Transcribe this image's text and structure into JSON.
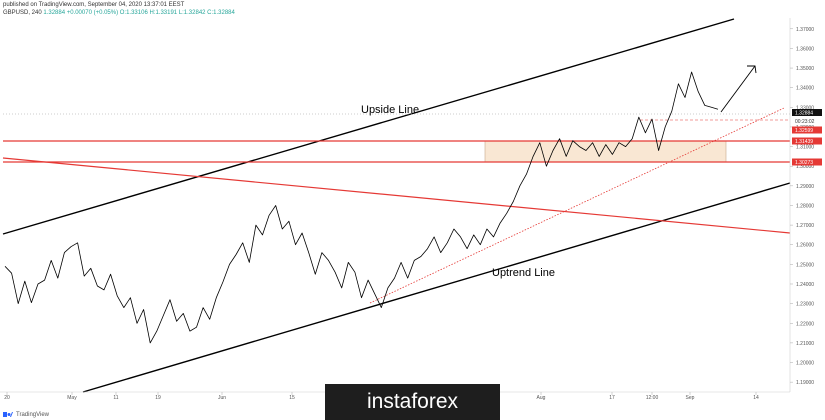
{
  "header": {
    "published_line": "published on TradingView.com, September 04, 2020 13:37:01 EEST",
    "symbol_line": "GBPUSD, 240",
    "ohlc": "1.32884 +0.00070 (+0.05%) O:1.33106 H:1.33191 L:1.32842 C:1.32884"
  },
  "footer": {
    "brand": "TradingView"
  },
  "watermark": {
    "text": "instaforex"
  },
  "colors": {
    "price": "#000000",
    "trendline_black": "#000000",
    "support_red": "#e53935",
    "tag_red": "#e53935",
    "tag_black": "#111111",
    "zone_fill": "#f9e7d3"
  },
  "chart_data": {
    "type": "line",
    "title": "",
    "price_axis": {
      "ticks": [
        "1.37000",
        "1.36000",
        "1.35000",
        "1.34000",
        "1.33000",
        "1.32000",
        "1.31000",
        "1.30000",
        "1.29000",
        "1.28000",
        "1.27000",
        "1.26000",
        "1.25000",
        "1.24000",
        "1.23000",
        "1.22000",
        "1.21000",
        "1.20000",
        "1.19000"
      ]
    },
    "time_axis": {
      "ticks": [
        "20",
        "May",
        "11",
        "19",
        "Jun",
        "15",
        "Aug",
        "17",
        "12:00",
        "Sep",
        "14"
      ]
    },
    "price_tags": [
      {
        "label": "1.32884",
        "sub": "00:23:02",
        "style": "dark"
      },
      {
        "label": "1.32599",
        "style": "red"
      },
      {
        "label": "1.31439",
        "style": "red"
      },
      {
        "label": "1.30273",
        "style": "red"
      }
    ],
    "annotations": [
      {
        "text": "Upside Line"
      },
      {
        "text": "Uptrend Line"
      }
    ],
    "series": [
      {
        "values": [
          1.249,
          1.2455,
          1.23,
          1.2415,
          1.2305,
          1.24,
          1.242,
          1.252,
          1.243,
          1.256,
          1.259,
          1.261,
          1.244,
          1.248,
          1.239,
          1.237,
          1.245,
          1.234,
          1.228,
          1.233,
          1.22,
          1.227,
          1.21,
          1.216,
          1.224,
          1.232,
          1.221,
          1.225,
          1.216,
          1.218,
          1.228,
          1.222,
          1.233,
          1.241,
          1.25,
          1.255,
          1.261,
          1.251,
          1.27,
          1.265,
          1.275,
          1.28,
          1.268,
          1.272,
          1.26,
          1.266,
          1.256,
          1.245,
          1.256,
          1.252,
          1.246,
          1.238,
          1.251,
          1.246,
          1.233,
          1.242,
          1.235,
          1.228,
          1.238,
          1.243,
          1.251,
          1.243,
          1.252,
          1.254,
          1.258,
          1.264,
          1.256,
          1.261,
          1.268,
          1.264,
          1.258,
          1.265,
          1.26,
          1.268,
          1.264,
          1.271,
          1.276,
          1.282,
          1.29,
          1.296,
          1.305,
          1.312,
          1.3,
          1.308,
          1.314,
          1.305,
          1.313,
          1.31,
          1.308,
          1.312,
          1.305,
          1.311,
          1.306,
          1.312,
          1.31,
          1.314,
          1.325,
          1.317,
          1.324,
          1.308,
          1.32,
          1.328,
          1.342,
          1.335,
          1.348,
          1.338,
          1.331,
          1.33,
          1.329
        ]
      }
    ]
  }
}
